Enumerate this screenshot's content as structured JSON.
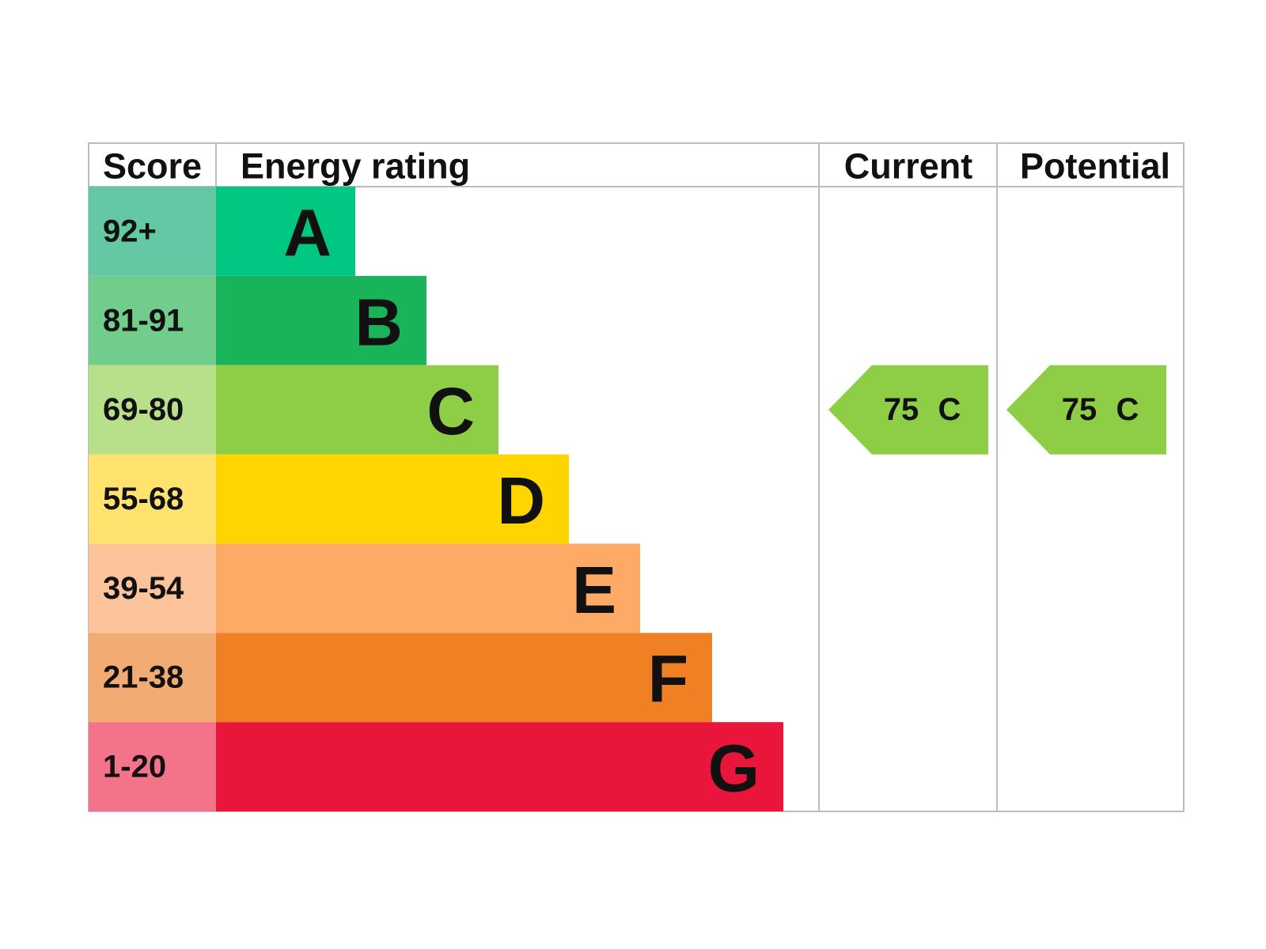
{
  "header": {
    "score": "Score",
    "rating": "Energy rating",
    "current": "Current",
    "potential": "Potential"
  },
  "rows": [
    {
      "score": "92+",
      "rating": "A"
    },
    {
      "score": "81-91",
      "rating": "B"
    },
    {
      "score": "69-80",
      "rating": "C"
    },
    {
      "score": "55-68",
      "rating": "D"
    },
    {
      "score": "39-54",
      "rating": "E"
    },
    {
      "score": "21-38",
      "rating": "F"
    },
    {
      "score": "1-20",
      "rating": "G"
    }
  ],
  "current": {
    "score": 75,
    "rating": "C"
  },
  "potential": {
    "score": 75,
    "rating": "C"
  }
}
